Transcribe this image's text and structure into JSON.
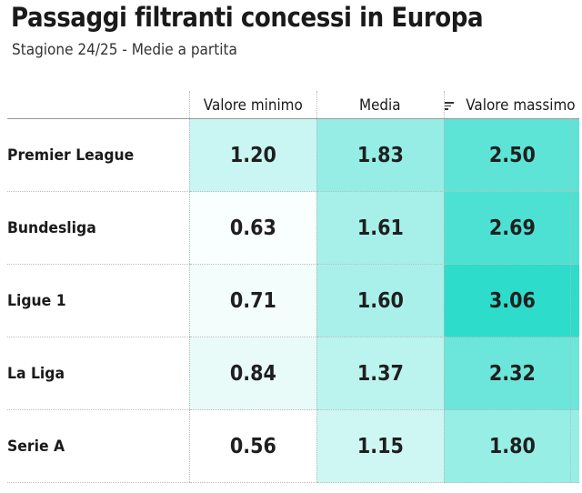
{
  "title": "Passaggi filtranti concessi in Europa",
  "subtitle": "Stagione 24/25 - Medie a partita",
  "chart_data": {
    "type": "table",
    "columns": [
      "Valore minimo",
      "Media",
      "Valore massimo"
    ],
    "sorted_column": "Media",
    "rows": [
      {
        "league": "Premier League",
        "values": [
          "1.20",
          "1.83",
          "2.50"
        ]
      },
      {
        "league": "Bundesliga",
        "values": [
          "0.63",
          "1.61",
          "2.69"
        ]
      },
      {
        "league": "Ligue 1",
        "values": [
          "0.71",
          "1.60",
          "3.06"
        ]
      },
      {
        "league": "La Liga",
        "values": [
          "0.84",
          "1.37",
          "2.32"
        ]
      },
      {
        "league": "Serie A",
        "values": [
          "0.56",
          "1.15",
          "1.80"
        ]
      }
    ],
    "color_scale": {
      "low": "#ffffff",
      "high": "#2edccb"
    }
  }
}
